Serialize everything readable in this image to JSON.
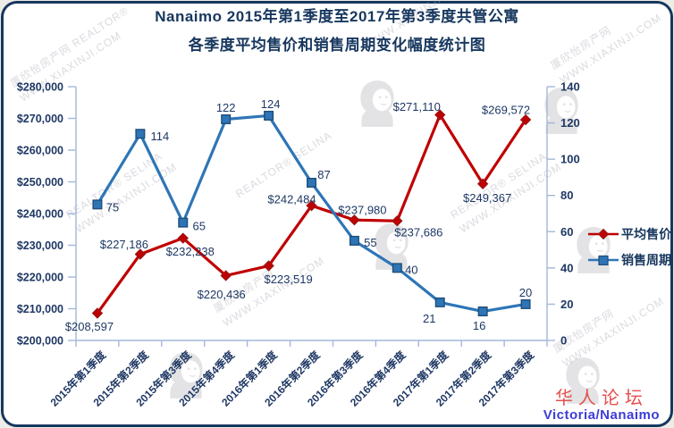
{
  "page": {
    "title_line1": "Nanaimo 2015年第1季度至2017年第3季度共管公寓",
    "title_line2": "各季度平均售价和销售周期变化幅度统计图"
  },
  "footer": {
    "forum": "华人论坛",
    "region": "Victoria/Nanaimo"
  },
  "watermarks": {
    "site_name": "厦欣怡房产网",
    "site_name_realtor": "厦欣怡房产网 REALTOR®",
    "realtor_selina": "REALTOR® SELINA",
    "site_url": "WWW.XIAXINJI.COM"
  },
  "colors": {
    "accent_navy": "#17375E",
    "axis_text": "#1F3864",
    "axis_line": "#A3B8D9",
    "price_red": "#C00000",
    "days_blue": "#2E75B6",
    "footer_red": "#E4504E",
    "footer_blue": "#3C3CD8",
    "watermark_gray": "#A9A9B6"
  },
  "chart_data": {
    "type": "line",
    "title": "Nanaimo 2015年第1季度至2017年第3季度共管公寓 各季度平均售价和销售周期变化幅度统计图",
    "categories": [
      "2015年第1季度",
      "2015年第2季度",
      "2015年第3季度",
      "2015年第4季度",
      "2016年第1季度",
      "2016年第2季度",
      "2016年第3季度",
      "2016年第4季度",
      "2017年第1季度",
      "2017年第2季度",
      "2017年第3季度"
    ],
    "series": [
      {
        "name": "平均售价",
        "axis": "left",
        "marker": "diamond",
        "color": "#C00000",
        "values": [
          208597,
          227186,
          232238,
          220436,
          223519,
          242484,
          237980,
          237686,
          271110,
          249367,
          269572
        ],
        "labels": [
          "$208,597",
          "$227,186",
          "$232,238",
          "$220,436",
          "$223,519",
          "$242,484",
          "$237,980",
          "$237,686",
          "$271,110",
          "$249,367",
          "$269,572"
        ]
      },
      {
        "name": "销售周期",
        "axis": "right",
        "marker": "square",
        "color": "#2E75B6",
        "values": [
          75,
          114,
          65,
          122,
          124,
          87,
          55,
          40,
          21,
          16,
          20
        ],
        "labels": [
          "75",
          "114",
          "65",
          "122",
          "124",
          "87",
          "55",
          "40",
          "21",
          "16",
          "20"
        ]
      }
    ],
    "left_axis": {
      "min": 200000,
      "max": 280000,
      "step": 10000,
      "prefix": "$"
    },
    "right_axis": {
      "min": 0,
      "max": 140,
      "step": 20
    },
    "grid": false,
    "legend_position": "right"
  }
}
